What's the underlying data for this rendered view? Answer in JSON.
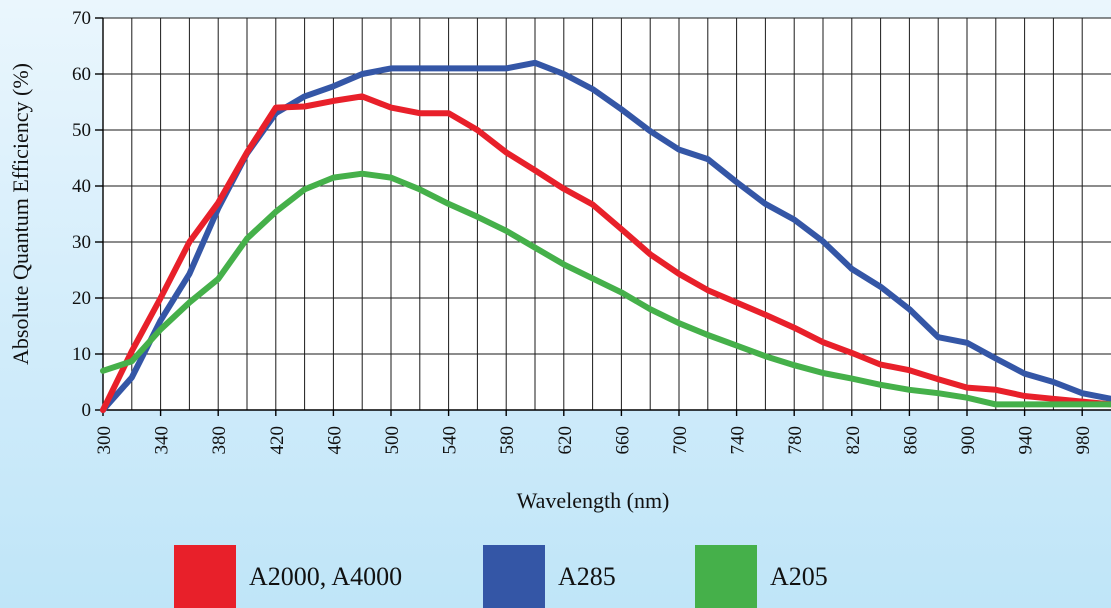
{
  "chart_data": {
    "type": "line",
    "title": "",
    "xlabel": "Wavelength (nm)",
    "ylabel": "Absolute Quantum Efficiency (%)",
    "xlim": [
      300,
      1000
    ],
    "ylim": [
      0,
      70
    ],
    "x_ticks": [
      300,
      340,
      380,
      420,
      460,
      500,
      540,
      580,
      620,
      660,
      700,
      740,
      780,
      820,
      860,
      900,
      940,
      980
    ],
    "y_ticks": [
      0,
      10,
      20,
      30,
      40,
      50,
      60,
      70
    ],
    "grid": true,
    "legend_position": "bottom",
    "series": [
      {
        "name": "A2000, A4000",
        "color": "#e8202a",
        "x": [
          300,
          320,
          340,
          360,
          380,
          400,
          420,
          440,
          460,
          480,
          500,
          520,
          540,
          560,
          580,
          600,
          620,
          640,
          660,
          680,
          700,
          720,
          740,
          760,
          780,
          800,
          820,
          840,
          860,
          880,
          900,
          920,
          940,
          960,
          980,
          1000
        ],
        "y": [
          0,
          10.5,
          20,
          30,
          37,
          46,
          54,
          54.2,
          55.2,
          56,
          54,
          53,
          53,
          50,
          46,
          42.8,
          39.5,
          36.7,
          32.3,
          27.8,
          24.3,
          21.4,
          19.2,
          17,
          14.7,
          12.1,
          10.2,
          8.1,
          7.1,
          5.5,
          4,
          3.6,
          2.5,
          2,
          1.5,
          1
        ]
      },
      {
        "name": "A285",
        "color": "#3456a6",
        "x": [
          300,
          320,
          340,
          360,
          380,
          400,
          420,
          440,
          460,
          480,
          500,
          520,
          540,
          560,
          580,
          600,
          620,
          640,
          660,
          680,
          700,
          720,
          740,
          760,
          780,
          800,
          820,
          840,
          860,
          880,
          900,
          920,
          940,
          960,
          980,
          1000
        ],
        "y": [
          0,
          5.8,
          16,
          24.3,
          36,
          45.8,
          53,
          56,
          57.8,
          60,
          61,
          61,
          61,
          61,
          61,
          62,
          60,
          57.3,
          53.7,
          49.8,
          46.5,
          44.8,
          40.7,
          36.8,
          34,
          30.1,
          25.2,
          22,
          18,
          13,
          12,
          9.2,
          6.5,
          5,
          3,
          2
        ]
      },
      {
        "name": "A205",
        "color": "#45b04a",
        "x": [
          300,
          320,
          340,
          360,
          380,
          400,
          420,
          440,
          460,
          480,
          500,
          520,
          540,
          560,
          580,
          600,
          620,
          640,
          660,
          680,
          700,
          720,
          740,
          760,
          780,
          800,
          820,
          840,
          860,
          880,
          900,
          920,
          940,
          960,
          980,
          1000
        ],
        "y": [
          7,
          8.7,
          14.4,
          19.2,
          23.4,
          30.6,
          35.4,
          39.4,
          41.5,
          42.2,
          41.5,
          39.4,
          36.8,
          34.5,
          32,
          29,
          26,
          23.5,
          21,
          18,
          15.5,
          13.4,
          11.5,
          9.6,
          8,
          6.6,
          5.6,
          4.5,
          3.6,
          3,
          2.2,
          1,
          1,
          1,
          1,
          1
        ]
      }
    ]
  }
}
